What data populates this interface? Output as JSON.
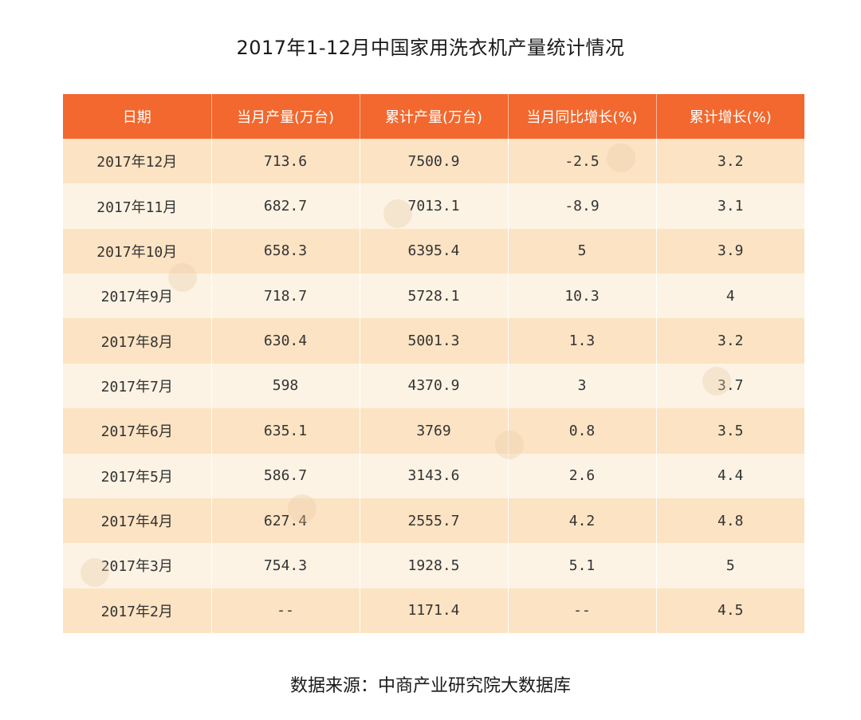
{
  "title": "2017年1-12月中国家用洗衣机产量统计情况",
  "source": "数据来源：中商产业研究院大数据库",
  "colors": {
    "header_bg": "#f2682e",
    "row_odd": "#fce3c3",
    "row_even": "#fdf3e4"
  },
  "chart_data": {
    "type": "table",
    "title": "2017年1-12月中国家用洗衣机产量统计情况",
    "columns": [
      "日期",
      "当月产量(万台)",
      "累计产量(万台)",
      "当月同比增长(%)",
      "累计增长(%)"
    ],
    "rows": [
      [
        "2017年12月",
        "713.6",
        "7500.9",
        "-2.5",
        "3.2"
      ],
      [
        "2017年11月",
        "682.7",
        "7013.1",
        "-8.9",
        "3.1"
      ],
      [
        "2017年10月",
        "658.3",
        "6395.4",
        "5",
        "3.9"
      ],
      [
        "2017年9月",
        "718.7",
        "5728.1",
        "10.3",
        "4"
      ],
      [
        "2017年8月",
        "630.4",
        "5001.3",
        "1.3",
        "3.2"
      ],
      [
        "2017年7月",
        "598",
        "4370.9",
        "3",
        "3.7"
      ],
      [
        "2017年6月",
        "635.1",
        "3769",
        "0.8",
        "3.5"
      ],
      [
        "2017年5月",
        "586.7",
        "3143.6",
        "2.6",
        "4.4"
      ],
      [
        "2017年4月",
        "627.4",
        "2555.7",
        "4.2",
        "4.8"
      ],
      [
        "2017年3月",
        "754.3",
        "1928.5",
        "5.1",
        "5"
      ],
      [
        "2017年2月",
        "--",
        "1171.4",
        "--",
        "4.5"
      ]
    ]
  }
}
